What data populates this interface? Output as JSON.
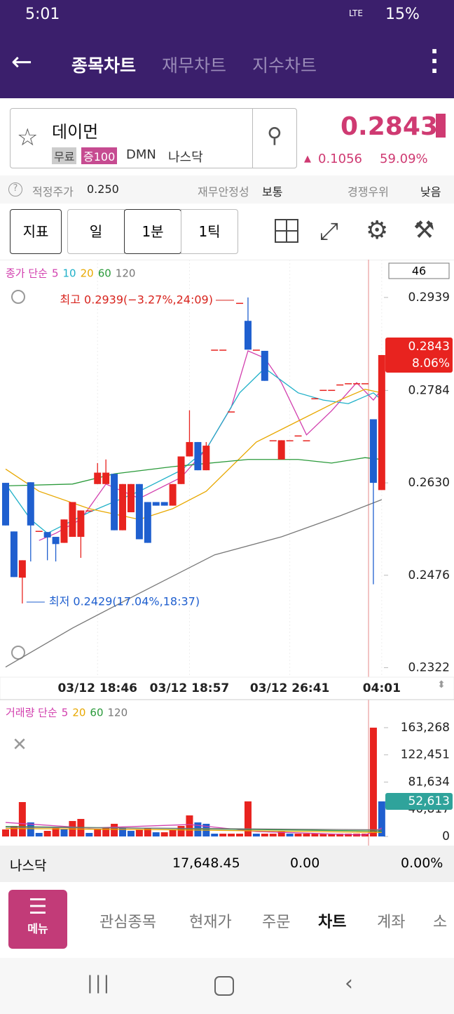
{
  "status_bar": {
    "time": "5:01",
    "network": "LTE",
    "battery": "15%"
  },
  "header": {
    "tabs": [
      "종목차트",
      "재무차트",
      "지수차트"
    ]
  },
  "stock": {
    "name": "데이먼",
    "tags": [
      "무료",
      "증100"
    ],
    "ticker": "DMN",
    "market": "나스닥",
    "price": "0.2843",
    "change": "0.1056",
    "change_pct": "59.09%"
  },
  "info_row": [
    [
      "적정주가",
      "0.250"
    ],
    [
      "재무안정성",
      "보통"
    ],
    [
      "경쟁우위",
      "낮음"
    ]
  ],
  "toolbar": {
    "buttons": [
      "지표",
      "일",
      "1분",
      "1틱"
    ]
  },
  "chart_data": [
    {
      "type": "candlestick",
      "legend_title": "종가 단순",
      "count_label": "46",
      "categories": [
        null,
        null,
        null,
        null,
        null,
        null,
        null,
        null,
        null,
        null,
        null,
        "03/12 18:46",
        null,
        null,
        null,
        null,
        null,
        null,
        null,
        null,
        null,
        null,
        "03/12 18:57",
        null,
        null,
        null,
        null,
        null,
        null,
        null,
        null,
        null,
        null,
        null,
        "03/12 26:41",
        null,
        null,
        null,
        null,
        null,
        null,
        null,
        null,
        null,
        null,
        "04:01"
      ],
      "open": [
        0.263,
        0.2549,
        0.2472,
        0.2631,
        0.255,
        0.2548,
        0.254,
        0.253,
        0.254,
        0.254,
        0.2584,
        0.2628,
        0.2628,
        0.2645,
        0.2551,
        0.2581,
        0.2628,
        0.2598,
        0.2598,
        0.2598,
        0.2592,
        0.2628,
        0.2674,
        0.2698,
        0.2651,
        0.2852,
        0.2852,
        0.2749,
        0.293,
        0.29,
        0.2852,
        0.285,
        0.2701,
        0.2669,
        0.2701,
        0.2709,
        0.2701,
        0.2771,
        0.2785,
        0.2785,
        0.2794,
        0.2796,
        0.2796,
        0.2796,
        0.2736,
        0.2618
      ],
      "high": [
        0.263,
        0.2549,
        0.2501,
        0.2631,
        0.255,
        0.2548,
        0.254,
        0.2569,
        0.2598,
        0.2584,
        0.2584,
        0.2663,
        0.2669,
        0.2645,
        0.2628,
        0.2628,
        0.2628,
        0.2598,
        0.2598,
        0.2598,
        0.2628,
        0.2674,
        0.2751,
        0.2698,
        0.2698,
        0.2852,
        0.2852,
        0.2749,
        0.293,
        0.2939,
        0.2852,
        0.285,
        0.2701,
        0.2701,
        0.2701,
        0.2709,
        0.2701,
        0.2771,
        0.2785,
        0.2785,
        0.2794,
        0.2796,
        0.2796,
        0.2796,
        0.2736,
        0.2843
      ],
      "low": [
        0.2559,
        0.2473,
        0.2429,
        0.2499,
        0.255,
        0.2501,
        0.2499,
        0.253,
        0.254,
        0.2505,
        0.2584,
        0.2628,
        0.2628,
        0.2551,
        0.2551,
        0.2581,
        0.2536,
        0.253,
        0.2592,
        0.2592,
        0.2592,
        0.2628,
        0.2674,
        0.2651,
        0.2651,
        0.2852,
        0.2852,
        0.2749,
        0.293,
        0.2852,
        0.2852,
        0.28,
        0.2701,
        0.2669,
        0.2701,
        0.2709,
        0.2701,
        0.2771,
        0.2785,
        0.2785,
        0.2794,
        0.2796,
        0.2796,
        0.2796,
        0.2461,
        0.2618
      ],
      "close": [
        0.2559,
        0.2473,
        0.2501,
        0.2559,
        0.255,
        0.2539,
        0.2528,
        0.2569,
        0.2598,
        0.2584,
        0.2584,
        0.2647,
        0.2647,
        0.2551,
        0.2628,
        0.2628,
        0.2536,
        0.253,
        0.2592,
        0.2592,
        0.2628,
        0.2674,
        0.2698,
        0.2651,
        0.2692,
        0.2852,
        0.2852,
        0.2749,
        0.293,
        0.2852,
        0.2852,
        0.28,
        0.2701,
        0.2701,
        0.2701,
        0.2709,
        0.2701,
        0.2771,
        0.2785,
        0.2785,
        0.2794,
        0.2796,
        0.2796,
        0.2796,
        0.263,
        0.2843
      ],
      "up_color": "#e8231f",
      "down_color": "#1f5fcf",
      "series": [
        {
          "name": "5",
          "color": "#d23fae",
          "x": [
            4,
            6,
            9,
            12,
            16,
            21,
            24,
            27,
            29,
            31,
            33,
            36,
            39,
            42,
            44,
            45
          ],
          "values": [
            0.2534,
            0.2546,
            0.2569,
            0.2628,
            0.2604,
            0.2639,
            0.2686,
            0.2756,
            0.285,
            0.2838,
            0.2797,
            0.271,
            0.275,
            0.2797,
            0.2768,
            0.2786
          ]
        },
        {
          "name": "10",
          "color": "#1fb0c8",
          "x": [
            0,
            3,
            5,
            10,
            16,
            21,
            24,
            28,
            31,
            35,
            38,
            41,
            44,
            45
          ],
          "values": [
            0.2628,
            0.2569,
            0.2546,
            0.2581,
            0.2616,
            0.2651,
            0.2686,
            0.278,
            0.2821,
            0.278,
            0.2768,
            0.2762,
            0.278,
            0.2768
          ]
        },
        {
          "name": "20",
          "color": "#e8a800",
          "x": [
            0,
            4,
            10,
            16,
            20,
            24,
            30,
            35,
            40,
            43,
            45
          ],
          "values": [
            0.2653,
            0.2616,
            0.2587,
            0.2569,
            0.2587,
            0.2616,
            0.2698,
            0.2733,
            0.2768,
            0.2786,
            0.278
          ]
        },
        {
          "name": "60",
          "color": "#2a9a3a",
          "x": [
            0,
            8,
            13,
            20,
            29,
            35,
            39,
            43,
            45
          ],
          "values": [
            0.2625,
            0.2628,
            0.2645,
            0.2657,
            0.2669,
            0.2669,
            0.2663,
            0.2672,
            0.2669
          ]
        },
        {
          "name": "120",
          "color": "#777777",
          "x": [
            0,
            8,
            16,
            25,
            33,
            40,
            45
          ],
          "values": [
            0.2323,
            0.2388,
            0.2446,
            0.251,
            0.254,
            0.2575,
            0.2602
          ]
        }
      ],
      "ylim": [
        0.2312,
        0.3002
      ],
      "yticks": [
        0.2939,
        0.2784,
        {
          "value": 0.263,
          "label": "0.2630"
        },
        0.2476,
        0.2322
      ],
      "annotations": [
        {
          "text": "최고 0.2939(−3.27%,24:09)",
          "color": "#d8241e"
        },
        {
          "text": "최저 0.2429(17.04%,18:37)",
          "color": "#1f5fcf"
        }
      ],
      "current": {
        "value": 0.2843,
        "label": "0.2843",
        "change": "8.06%"
      }
    },
    {
      "type": "bar",
      "legend_title": "거래량 단순",
      "values": [
        10500,
        15800,
        51600,
        21100,
        5300,
        8400,
        12600,
        10500,
        23200,
        26300,
        5300,
        10500,
        12600,
        19000,
        12600,
        8400,
        10500,
        12600,
        6300,
        6300,
        10500,
        15800,
        31600,
        21100,
        19000,
        4200,
        4200,
        4200,
        4200,
        52600,
        4200,
        4200,
        4200,
        8400,
        4200,
        4200,
        4200,
        4200,
        4200,
        4200,
        4200,
        4200,
        4200,
        4200,
        163268,
        52613
      ],
      "up_color": "#e8231f",
      "down_color": "#1f5fcf",
      "series": [
        {
          "name": "5",
          "color": "#d23fae",
          "x": [
            0,
            10,
            22,
            30,
            43,
            45
          ],
          "values": [
            21000,
            12600,
            17900,
            7400,
            2100,
            12600
          ]
        },
        {
          "name": "20",
          "color": "#e8a800",
          "x": [
            0,
            20,
            45
          ],
          "values": [
            12000,
            10000,
            6000
          ]
        },
        {
          "name": "60",
          "color": "#2a9a3a",
          "x": [
            0,
            45
          ],
          "values": [
            15000,
            8000
          ]
        },
        {
          "name": "120",
          "color": "#777777",
          "x": [
            0,
            45
          ],
          "values": [
            14000,
            10000
          ]
        }
      ],
      "ylim": [
        0,
        196900
      ],
      "yticks": [
        {
          "value": 163268,
          "label": "163,268"
        },
        {
          "value": 122451,
          "label": "122,451"
        },
        {
          "value": 81634,
          "label": "81,634"
        },
        {
          "value": 40817,
          "label": "40,817"
        },
        0
      ],
      "current": {
        "value": 52613,
        "label": "52,613"
      }
    }
  ],
  "index_bar": {
    "name": "나스닥",
    "value": "17,648.45",
    "change": "0.00",
    "change_pct": "0.00%"
  },
  "bottom_nav": {
    "menu": "메뉴",
    "tabs": [
      "관심종목",
      "현재가",
      "주문",
      "차트",
      "계좌",
      "소"
    ]
  }
}
